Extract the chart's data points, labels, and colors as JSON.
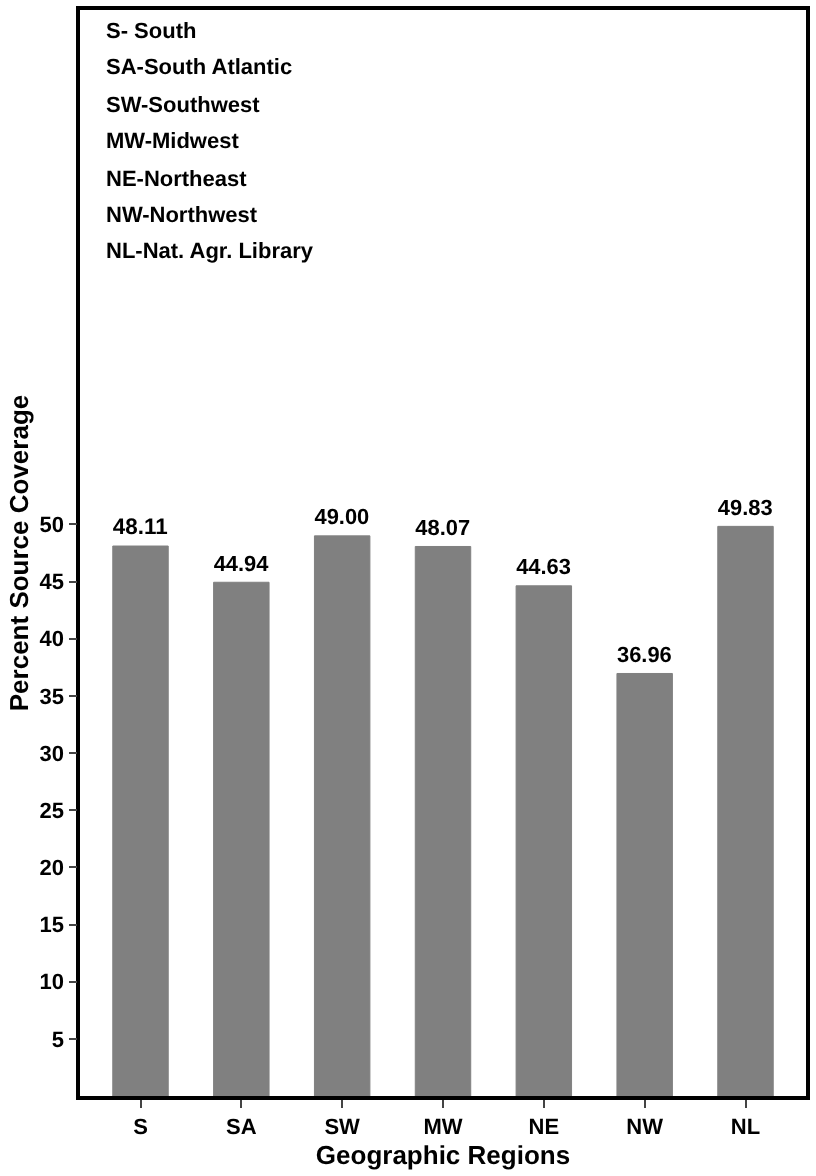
{
  "chart_data": {
    "type": "bar",
    "xlabel": "Geographic Regions",
    "ylabel": "Percent Source Coverage",
    "categories": [
      "S",
      "SA",
      "SW",
      "MW",
      "NE",
      "NW",
      "NL"
    ],
    "values": [
      48.11,
      44.94,
      49.0,
      48.07,
      44.63,
      36.96,
      49.83
    ],
    "value_labels": [
      "48.11",
      "44.94",
      "49.00",
      "48.07",
      "44.63",
      "36.96",
      "49.83"
    ],
    "color": "#808080",
    "ylim": [
      0,
      95
    ],
    "yticks": [
      5,
      10,
      15,
      20,
      25,
      30,
      35,
      40,
      45,
      50
    ],
    "annotations": [
      "S- South",
      "SA-South Atlantic",
      "SW-Southwest",
      "MW-Midwest",
      "NE-Northeast",
      "NW-Northwest",
      "NL-Nat. Agr. Library"
    ],
    "legend": false
  }
}
